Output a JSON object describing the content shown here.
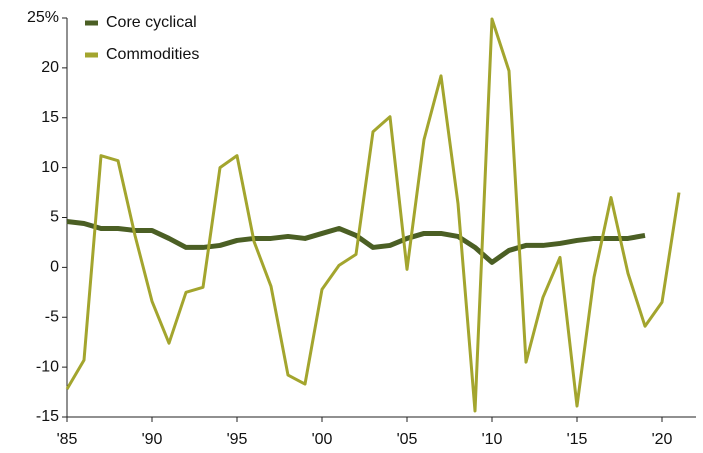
{
  "chart_data": {
    "type": "line",
    "x": [
      1985,
      1986,
      1987,
      1988,
      1989,
      1990,
      1991,
      1992,
      1993,
      1994,
      1995,
      1996,
      1997,
      1998,
      1999,
      2000,
      2001,
      2002,
      2003,
      2004,
      2005,
      2006,
      2007,
      2008,
      2009,
      2010,
      2011,
      2012,
      2013,
      2014,
      2015,
      2016,
      2017,
      2018,
      2019,
      2020,
      2021
    ],
    "series": [
      {
        "name": "Core cyclical",
        "color": "#4b5f24",
        "values": [
          4.6,
          4.4,
          3.9,
          3.9,
          3.7,
          3.7,
          2.9,
          2.0,
          2.0,
          2.2,
          2.7,
          2.9,
          2.9,
          3.1,
          2.9,
          3.4,
          3.9,
          3.2,
          2.0,
          2.2,
          2.9,
          3.4,
          3.4,
          3.1,
          2.0,
          0.5,
          1.7,
          2.2,
          2.2,
          2.4,
          2.7,
          2.9,
          2.9,
          2.9,
          3.2,
          null,
          null
        ]
      },
      {
        "name": "Commodities",
        "color": "#a3a52e",
        "values": [
          -12.2,
          -9.3,
          11.2,
          10.7,
          3.2,
          -3.4,
          -7.6,
          -2.5,
          -2.0,
          10.0,
          11.2,
          2.6,
          -1.9,
          -10.8,
          -11.7,
          -2.2,
          0.2,
          1.3,
          13.6,
          15.1,
          -0.2,
          12.8,
          19.2,
          6.4,
          -14.4,
          24.9,
          19.7,
          -9.5,
          -3.0,
          1.0,
          -13.9,
          -1.0,
          7.0,
          -0.6,
          -5.9,
          -3.5,
          7.5
        ]
      }
    ],
    "xlim": [
      1985,
      2022
    ],
    "xticks": [
      {
        "value": 1985,
        "label": "'85"
      },
      {
        "value": 1990,
        "label": "'90"
      },
      {
        "value": 1995,
        "label": "'95"
      },
      {
        "value": 2000,
        "label": "'00"
      },
      {
        "value": 2005,
        "label": "'05"
      },
      {
        "value": 2010,
        "label": "'10"
      },
      {
        "value": 2015,
        "label": "'15"
      },
      {
        "value": 2020,
        "label": "'20"
      }
    ],
    "ylim": [
      -15,
      25
    ],
    "yticks": [
      -15,
      -10,
      -5,
      0,
      5,
      10,
      15,
      {
        "value": 25,
        "label": "25%"
      },
      20
    ],
    "legend": "top-left"
  }
}
